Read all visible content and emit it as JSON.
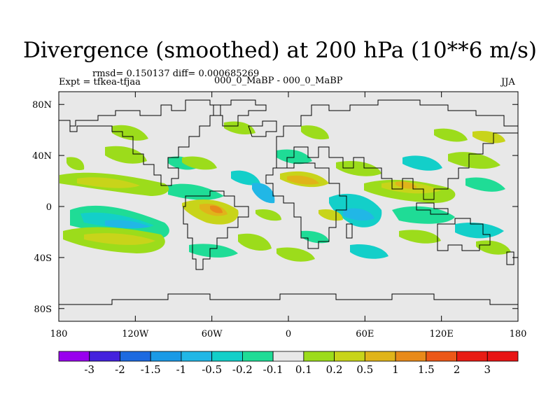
{
  "chart_data": {
    "type": "heatmap",
    "title": "Divergence (smoothed) at 200 hPa (10**6 m/s)",
    "stats": "rmsd= 0.150137 diff= 0.000685269",
    "experiment": "Expt = tfkea-tfjaa",
    "subtitle": "000_0_MaBP - 000_0_MaBP",
    "season": "JJA",
    "x_ticks": [
      "180",
      "120W",
      "60W",
      "0",
      "60E",
      "120E",
      "180"
    ],
    "x_tick_values": [
      -180,
      -120,
      -60,
      0,
      60,
      120,
      180
    ],
    "y_ticks": [
      "80N",
      "40N",
      "0",
      "40S",
      "80S"
    ],
    "y_tick_values": [
      80,
      40,
      0,
      -40,
      -80
    ],
    "xlim": [
      -180,
      180
    ],
    "ylim": [
      -90,
      90
    ],
    "colorbar": {
      "labels": [
        "-3",
        "-2",
        "-1.5",
        "-1",
        "-0.5",
        "-0.2",
        "-0.1",
        "0.1",
        "0.2",
        "0.5",
        "1",
        "1.5",
        "2",
        "3"
      ],
      "colors": [
        "#9900ee",
        "#4422dd",
        "#1d6ae0",
        "#1a9ae6",
        "#21b7e6",
        "#13cfc9",
        "#1fdc96",
        "#e8e8e8",
        "#9cdc1b",
        "#c8d41a",
        "#e0b41a",
        "#e88a1a",
        "#ec5818",
        "#e81c14",
        "#e81414"
      ]
    }
  }
}
